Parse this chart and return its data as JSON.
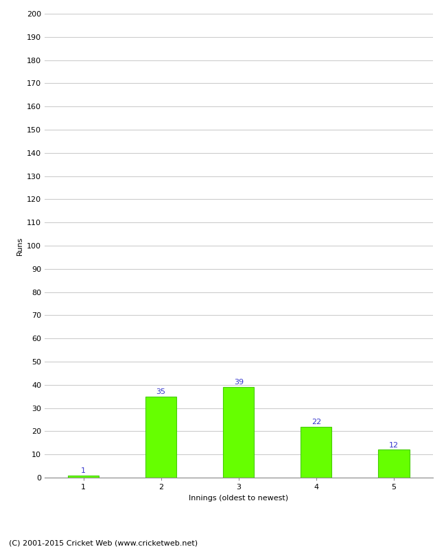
{
  "categories": [
    "1",
    "2",
    "3",
    "4",
    "5"
  ],
  "values": [
    1,
    35,
    39,
    22,
    12
  ],
  "bar_color": "#66ff00",
  "bar_edge_color": "#44cc00",
  "xlabel": "Innings (oldest to newest)",
  "ylabel": "Runs",
  "ylim": [
    0,
    200
  ],
  "yticks": [
    0,
    10,
    20,
    30,
    40,
    50,
    60,
    70,
    80,
    90,
    100,
    110,
    120,
    130,
    140,
    150,
    160,
    170,
    180,
    190,
    200
  ],
  "label_color": "#3333cc",
  "label_fontsize": 8,
  "axis_label_fontsize": 8,
  "tick_fontsize": 8,
  "footer_text": "(C) 2001-2015 Cricket Web (www.cricketweb.net)",
  "footer_fontsize": 8,
  "background_color": "#ffffff",
  "grid_color": "#cccccc",
  "bar_width": 0.4
}
